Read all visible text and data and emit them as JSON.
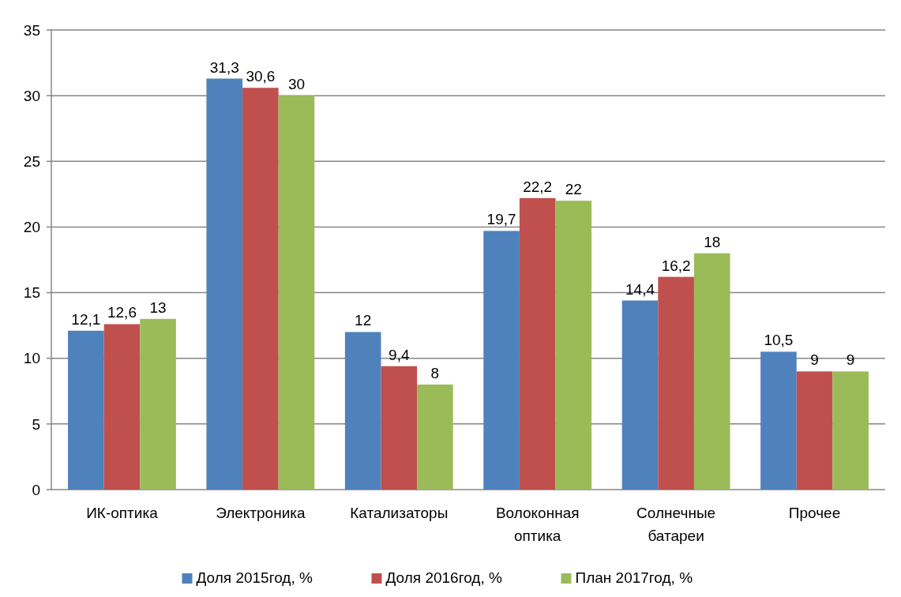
{
  "chart_data": {
    "type": "bar",
    "categories": [
      "ИК-оптика",
      "Электроника",
      "Катализаторы",
      "Волоконная оптика",
      "Солнечные батареи",
      "Прочее"
    ],
    "series": [
      {
        "name": "Доля 2015год, %",
        "color": "#4f81bd",
        "values": [
          12.1,
          31.3,
          12,
          19.7,
          14.4,
          10.5
        ],
        "value_labels": [
          "12,1",
          "31,3",
          "12",
          "19,7",
          "14,4",
          "10,5"
        ]
      },
      {
        "name": "Доля 2016год, %",
        "color": "#c0504d",
        "values": [
          12.6,
          30.6,
          9.4,
          22.2,
          16.2,
          9
        ],
        "value_labels": [
          "12,6",
          "30,6",
          "9,4",
          "22,2",
          "16,2",
          "9"
        ]
      },
      {
        "name": "План 2017год, %",
        "color": "#9bbb59",
        "values": [
          13,
          30,
          8,
          22,
          18,
          9
        ],
        "value_labels": [
          "13",
          "30",
          "8",
          "22",
          "18",
          "9"
        ]
      }
    ],
    "ylim": [
      0,
      35
    ],
    "yticks": [
      0,
      5,
      10,
      15,
      20,
      25,
      30,
      35
    ],
    "grid": "y",
    "legend": "bottom"
  }
}
